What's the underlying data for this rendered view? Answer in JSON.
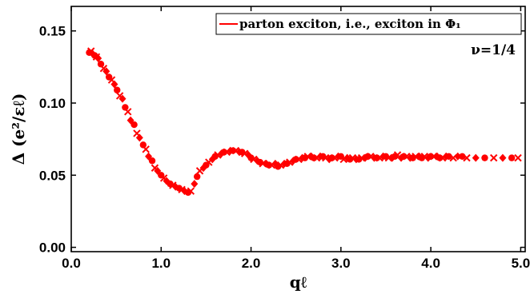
{
  "chart_data": {
    "type": "scatter",
    "xlabel": "qℓ",
    "ylabel": "Δ (e²/εℓ)",
    "xlim": [
      0,
      5.05
    ],
    "ylim": [
      -0.003,
      0.167
    ],
    "x_ticks": [
      0,
      1,
      2,
      3,
      4,
      5
    ],
    "x_tick_labels": [
      "0.0",
      "1.0",
      "2.0",
      "3.0",
      "4.0",
      "5.0"
    ],
    "y_ticks": [
      0,
      0.05,
      0.1,
      0.15
    ],
    "y_tick_labels": [
      "0.00",
      "0.05",
      "0.10",
      "0.15"
    ],
    "grid": false,
    "legend_position": "top-right",
    "color": "#ff0000",
    "series": [
      {
        "name": "parton exciton, i.e., exciton in Φ₁",
        "markers": [
          "circle",
          "cross",
          "diamond"
        ],
        "x": [
          0.2,
          0.22,
          0.24,
          0.26,
          0.28,
          0.3,
          0.33,
          0.36,
          0.39,
          0.42,
          0.45,
          0.48,
          0.51,
          0.54,
          0.57,
          0.6,
          0.63,
          0.66,
          0.7,
          0.73,
          0.76,
          0.8,
          0.83,
          0.86,
          0.9,
          0.93,
          0.96,
          1.0,
          1.03,
          1.06,
          1.1,
          1.13,
          1.16,
          1.2,
          1.23,
          1.26,
          1.3,
          1.33,
          1.37,
          1.4,
          1.43,
          1.47,
          1.5,
          1.53,
          1.57,
          1.6,
          1.63,
          1.67,
          1.7,
          1.73,
          1.77,
          1.8,
          1.83,
          1.87,
          1.9,
          1.93,
          1.97,
          2.0,
          2.03,
          2.07,
          2.1,
          2.13,
          2.17,
          2.2,
          2.23,
          2.27,
          2.3,
          2.33,
          2.37,
          2.4,
          2.43,
          2.47,
          2.5,
          2.53,
          2.57,
          2.6,
          2.63,
          2.67,
          2.7,
          2.73,
          2.77,
          2.8,
          2.83,
          2.87,
          2.9,
          2.93,
          2.97,
          3.0,
          3.03,
          3.07,
          3.1,
          3.13,
          3.17,
          3.2,
          3.23,
          3.27,
          3.3,
          3.33,
          3.37,
          3.4,
          3.43,
          3.47,
          3.5,
          3.53,
          3.57,
          3.6,
          3.63,
          3.67,
          3.7,
          3.73,
          3.77,
          3.8,
          3.83,
          3.87,
          3.9,
          3.93,
          3.97,
          4.0,
          4.03,
          4.07,
          4.1,
          4.13,
          4.17,
          4.2,
          4.25,
          4.3,
          4.35,
          4.4,
          4.5,
          4.6,
          4.7,
          4.8,
          4.9,
          4.97
        ],
        "y": [
          0.135,
          0.136,
          0.134,
          0.133,
          0.132,
          0.131,
          0.127,
          0.124,
          0.122,
          0.118,
          0.116,
          0.113,
          0.109,
          0.105,
          0.103,
          0.097,
          0.094,
          0.088,
          0.085,
          0.079,
          0.076,
          0.071,
          0.068,
          0.063,
          0.06,
          0.055,
          0.053,
          0.05,
          0.048,
          0.046,
          0.044,
          0.043,
          0.042,
          0.041,
          0.04,
          0.039,
          0.038,
          0.039,
          0.044,
          0.049,
          0.053,
          0.055,
          0.057,
          0.059,
          0.061,
          0.063,
          0.064,
          0.065,
          0.066,
          0.066,
          0.067,
          0.067,
          0.067,
          0.066,
          0.066,
          0.065,
          0.064,
          0.062,
          0.061,
          0.06,
          0.059,
          0.058,
          0.058,
          0.057,
          0.057,
          0.058,
          0.056,
          0.057,
          0.058,
          0.058,
          0.059,
          0.06,
          0.061,
          0.061,
          0.062,
          0.062,
          0.063,
          0.063,
          0.062,
          0.062,
          0.063,
          0.063,
          0.062,
          0.061,
          0.062,
          0.062,
          0.063,
          0.063,
          0.061,
          0.062,
          0.061,
          0.062,
          0.061,
          0.061,
          0.062,
          0.062,
          0.063,
          0.063,
          0.062,
          0.062,
          0.062,
          0.063,
          0.063,
          0.062,
          0.062,
          0.063,
          0.064,
          0.062,
          0.063,
          0.063,
          0.062,
          0.062,
          0.063,
          0.063,
          0.062,
          0.063,
          0.062,
          0.063,
          0.063,
          0.063,
          0.062,
          0.062,
          0.063,
          0.063,
          0.062,
          0.063,
          0.063,
          0.062,
          0.062,
          0.062,
          0.062,
          0.062,
          0.062,
          0.062
        ]
      }
    ],
    "annotations": [
      {
        "text": "ν=1/4",
        "position": "top-right"
      }
    ]
  }
}
